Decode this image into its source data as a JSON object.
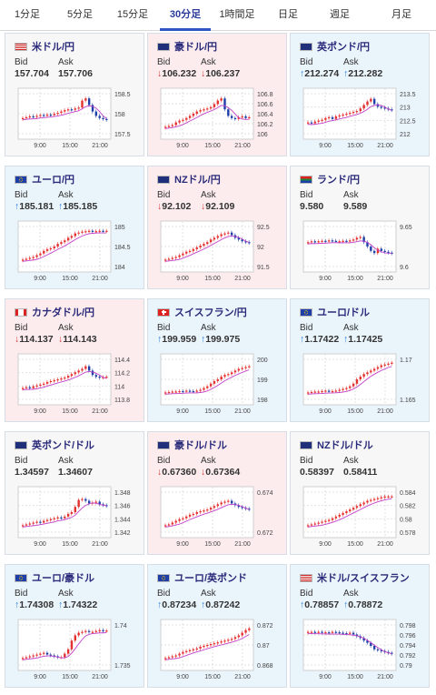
{
  "tabs": [
    {
      "label": "1分足",
      "active": false,
      "width": 60
    },
    {
      "label": "5分足",
      "active": false,
      "width": 56
    },
    {
      "label": "15分足",
      "active": false,
      "width": 60
    },
    {
      "label": "30分足",
      "active": true,
      "width": 56
    },
    {
      "label": "1時間足",
      "active": false,
      "width": 58
    },
    {
      "label": "日足",
      "active": false,
      "width": 54
    },
    {
      "label": "週足",
      "active": false,
      "width": 60
    },
    {
      "label": "月足",
      "active": false,
      "width": 76
    }
  ],
  "labels": {
    "bid": "Bid",
    "ask": "Ask"
  },
  "colors": {
    "up": "#2a7fd6",
    "down": "#d63a3a",
    "candle_up": "#e53030",
    "candle_down": "#1f3fa8",
    "ma": "#c040c8"
  },
  "cards": [
    {
      "name": "米ドル/円",
      "flag": "us-jp",
      "trend": "flat",
      "bid": "157.704",
      "ask": "157.706",
      "y_ticks": [
        "158.5",
        "158",
        "157.5"
      ],
      "x_ticks": [
        "9:00",
        "15:00",
        "21:00"
      ]
    },
    {
      "name": "豪ドル/円",
      "flag": "au-jp",
      "trend": "down",
      "bid": "106.232",
      "ask": "106.237",
      "y_ticks": [
        "106.8",
        "106.6",
        "106.4",
        "106.2",
        "106"
      ],
      "x_ticks": [
        "9:00",
        "15:00",
        "21:00"
      ]
    },
    {
      "name": "英ポンド/円",
      "flag": "gb-jp",
      "trend": "up",
      "bid": "212.274",
      "ask": "212.282",
      "y_ticks": [
        "213.5",
        "213",
        "212.5",
        "212"
      ],
      "x_ticks": [
        "9:00",
        "15:00",
        "21:00"
      ]
    },
    {
      "name": "ユーロ/円",
      "flag": "eu-jp",
      "trend": "up",
      "bid": "185.181",
      "ask": "185.185",
      "y_ticks": [
        "185",
        "184.5",
        "184"
      ],
      "x_ticks": [
        "9:00",
        "15:00",
        "21:00"
      ]
    },
    {
      "name": "NZドル/円",
      "flag": "nz-jp",
      "trend": "down",
      "bid": "92.102",
      "ask": "92.109",
      "y_ticks": [
        "92.5",
        "92",
        "91.5"
      ],
      "x_ticks": [
        "9:00",
        "15:00",
        "21:00"
      ]
    },
    {
      "name": "ランド/円",
      "flag": "za-jp",
      "trend": "flat",
      "bid": "9.580",
      "ask": "9.589",
      "y_ticks": [
        "9.65",
        "9.6"
      ],
      "x_ticks": [
        "9:00",
        "15:00",
        "21:00"
      ]
    },
    {
      "name": "カナダドル/円",
      "flag": "ca-jp",
      "trend": "down",
      "bid": "114.137",
      "ask": "114.143",
      "y_ticks": [
        "114.4",
        "114.2",
        "114",
        "113.8"
      ],
      "x_ticks": [
        "9:00",
        "15:00",
        "21:00"
      ]
    },
    {
      "name": "スイスフラン/円",
      "flag": "ch-jp",
      "trend": "up",
      "bid": "199.959",
      "ask": "199.975",
      "y_ticks": [
        "200",
        "199",
        "198"
      ],
      "x_ticks": [
        "9:00",
        "15:00",
        "21:00"
      ]
    },
    {
      "name": "ユーロ/ドル",
      "flag": "eu-us",
      "trend": "up",
      "bid": "1.17422",
      "ask": "1.17425",
      "y_ticks": [
        "1.17",
        "1.165"
      ],
      "x_ticks": [
        "9:00",
        "15:00",
        "21:00"
      ]
    },
    {
      "name": "英ポンド/ドル",
      "flag": "gb-us",
      "trend": "flat",
      "bid": "1.34597",
      "ask": "1.34607",
      "y_ticks": [
        "1.348",
        "1.346",
        "1.344",
        "1.342"
      ],
      "x_ticks": [
        "9:00",
        "15:00",
        "21:00"
      ]
    },
    {
      "name": "豪ドル/ドル",
      "flag": "au-us",
      "trend": "down",
      "bid": "0.67360",
      "ask": "0.67364",
      "y_ticks": [
        "0.674",
        "0.672"
      ],
      "x_ticks": [
        "9:00",
        "15:00",
        "21:00"
      ]
    },
    {
      "name": "NZドル/ドル",
      "flag": "nz-us",
      "trend": "flat",
      "bid": "0.58397",
      "ask": "0.58411",
      "y_ticks": [
        "0.584",
        "0.582",
        "0.58",
        "0.578"
      ],
      "x_ticks": [
        "9:00",
        "15:00",
        "21:00"
      ]
    },
    {
      "name": "ユーロ/豪ドル",
      "flag": "eu-au",
      "trend": "up",
      "bid": "1.74308",
      "ask": "1.74322",
      "y_ticks": [
        "1.74",
        "1.735"
      ],
      "x_ticks": [
        "9:00",
        "15:00",
        "21:00"
      ]
    },
    {
      "name": "ユーロ/英ポンド",
      "flag": "eu-gb",
      "trend": "up",
      "bid": "0.87234",
      "ask": "0.87242",
      "y_ticks": [
        "0.872",
        "0.87",
        "0.868"
      ],
      "x_ticks": [
        "9:00",
        "15:00",
        "21:00"
      ]
    },
    {
      "name": "米ドル/スイスフラン",
      "flag": "us-ch",
      "trend": "up",
      "bid": "0.78857",
      "ask": "0.78872",
      "y_ticks": [
        "0.798",
        "0.796",
        "0.794",
        "0.792",
        "0.79"
      ],
      "x_ticks": [
        "9:00",
        "15:00",
        "21:00"
      ]
    }
  ],
  "series": [
    [
      40,
      42,
      44,
      43,
      45,
      47,
      46,
      48,
      47,
      50,
      52,
      55,
      58,
      60,
      59,
      62,
      64,
      80,
      85,
      70,
      55,
      45,
      40,
      38,
      36
    ],
    [
      20,
      22,
      24,
      30,
      34,
      36,
      40,
      45,
      50,
      55,
      58,
      60,
      62,
      65,
      72,
      80,
      85,
      60,
      45,
      40,
      38,
      42,
      44,
      40,
      42
    ],
    [
      30,
      28,
      32,
      34,
      36,
      40,
      42,
      38,
      44,
      46,
      48,
      50,
      52,
      54,
      56,
      62,
      70,
      78,
      84,
      72,
      66,
      64,
      62,
      60,
      58
    ],
    [
      20,
      22,
      24,
      26,
      30,
      34,
      40,
      44,
      46,
      50,
      56,
      60,
      64,
      70,
      74,
      80,
      82,
      84,
      85,
      86,
      84,
      85,
      86,
      85,
      86
    ],
    [
      20,
      22,
      24,
      26,
      30,
      34,
      38,
      40,
      44,
      48,
      52,
      56,
      60,
      66,
      70,
      74,
      78,
      80,
      82,
      76,
      70,
      66,
      62,
      60,
      58
    ],
    [
      60,
      62,
      60,
      62,
      63,
      62,
      64,
      63,
      62,
      62,
      63,
      62,
      64,
      66,
      70,
      72,
      60,
      50,
      40,
      35,
      45,
      40,
      38,
      36,
      34
    ],
    [
      30,
      32,
      30,
      34,
      36,
      38,
      40,
      44,
      46,
      48,
      50,
      52,
      54,
      58,
      62,
      66,
      70,
      74,
      80,
      70,
      60,
      56,
      54,
      55,
      56
    ],
    [
      20,
      21,
      22,
      22,
      23,
      22,
      24,
      23,
      22,
      24,
      26,
      30,
      34,
      40,
      46,
      50,
      56,
      60,
      62,
      66,
      70,
      74,
      76,
      78,
      80
    ],
    [
      20,
      21,
      22,
      22,
      23,
      24,
      22,
      23,
      24,
      26,
      28,
      30,
      34,
      40,
      50,
      56,
      62,
      66,
      70,
      74,
      78,
      82,
      84,
      86,
      88
    ],
    [
      20,
      22,
      24,
      26,
      28,
      26,
      30,
      32,
      34,
      36,
      38,
      36,
      40,
      46,
      50,
      62,
      78,
      80,
      76,
      70,
      72,
      74,
      68,
      66,
      64
    ],
    [
      20,
      22,
      26,
      30,
      34,
      36,
      40,
      44,
      46,
      50,
      52,
      54,
      56,
      60,
      64,
      68,
      72,
      74,
      76,
      70,
      66,
      62,
      60,
      58,
      56
    ],
    [
      20,
      22,
      24,
      26,
      28,
      30,
      32,
      36,
      40,
      44,
      48,
      52,
      56,
      60,
      64,
      68,
      72,
      76,
      78,
      80,
      82,
      84,
      86,
      86,
      86
    ],
    [
      20,
      22,
      24,
      26,
      28,
      30,
      32,
      28,
      26,
      24,
      22,
      22,
      30,
      40,
      60,
      72,
      78,
      80,
      82,
      80,
      80,
      82,
      84,
      82,
      83
    ],
    [
      20,
      22,
      24,
      26,
      30,
      34,
      36,
      38,
      40,
      42,
      46,
      48,
      50,
      52,
      54,
      56,
      58,
      60,
      62,
      64,
      68,
      72,
      78,
      84,
      88
    ],
    [
      80,
      80,
      79,
      80,
      78,
      79,
      78,
      80,
      79,
      78,
      77,
      76,
      78,
      74,
      70,
      66,
      60,
      55,
      48,
      40,
      38,
      36,
      34,
      32,
      30
    ]
  ]
}
